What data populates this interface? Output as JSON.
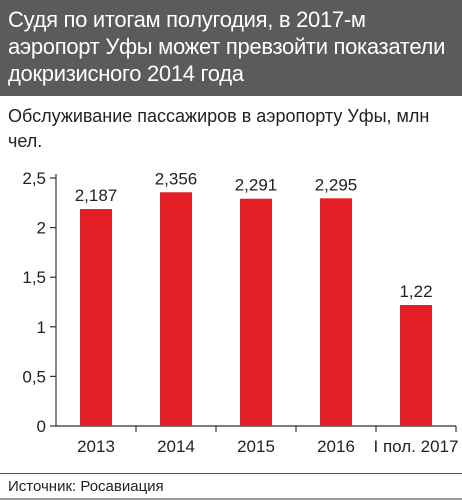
{
  "header": {
    "title": "Судя по итогам полугодия, в 2017-м аэропорт Уфы может превзойти показатели докризисного 2014 года"
  },
  "source": "Источник: Росавиация",
  "colors": {
    "header_bg": "#5b5b5b",
    "bar": "#e31e25",
    "axis": "#333333"
  },
  "chart_data": {
    "type": "bar",
    "title": "Обслуживание пассажиров в аэропорту Уфы, млн чел.",
    "categories": [
      "2013",
      "2014",
      "2015",
      "2016",
      "I пол. 2017"
    ],
    "values": [
      2.187,
      2.356,
      2.291,
      2.295,
      1.22
    ],
    "value_labels": [
      "2,187",
      "2,356",
      "2,291",
      "2,295",
      "1,22"
    ],
    "yticks": [
      "0",
      "0,5",
      "1",
      "1,5",
      "2",
      "2,5"
    ],
    "ylim": [
      0,
      2.5
    ],
    "grid": false,
    "xlabel": "",
    "ylabel": ""
  }
}
